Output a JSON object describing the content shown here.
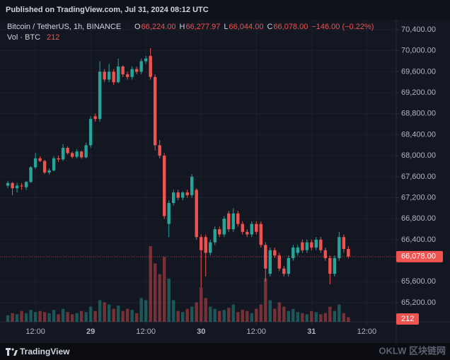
{
  "header": {
    "published": "Published on TradingView.com, Jul 31, 2024 08:12 UTC",
    "brand": "TradingView",
    "watermark": "OKLW 区块链网"
  },
  "chart_data": {
    "type": "candlestick",
    "symbol": "Bitcoin / TetherUS, 1h, BINANCE",
    "ohlc_legend": [
      {
        "label": "O",
        "value": "66,224.00"
      },
      {
        "label": "H",
        "value": "66,277.97"
      },
      {
        "label": "L",
        "value": "66,044.00"
      },
      {
        "label": "C",
        "value": "66,078.00"
      }
    ],
    "change": "−146.00 (−0.22%)",
    "volume_label": "Vol · BTC",
    "up_color": "#26a69a",
    "down_color": "#ef5350",
    "x": [
      0,
      1,
      2,
      3,
      4,
      5,
      6,
      7,
      8,
      9,
      10,
      11,
      12,
      13,
      14,
      15,
      16,
      17,
      18,
      19,
      20,
      21,
      22,
      23,
      24,
      25,
      26,
      27,
      28,
      29,
      30,
      31,
      32,
      33,
      34,
      35,
      36,
      37,
      38,
      39,
      40,
      41,
      42,
      43,
      44,
      45,
      46,
      47,
      48,
      49,
      50,
      51,
      52,
      53,
      54,
      55,
      56,
      57,
      58,
      59,
      60,
      61,
      62,
      63,
      64,
      65,
      66,
      67,
      68,
      69,
      70,
      71,
      72,
      73,
      74
    ],
    "open": [
      67430,
      67480,
      67380,
      67430,
      67400,
      67500,
      67780,
      67950,
      67900,
      67680,
      67720,
      67950,
      67930,
      68150,
      68050,
      67980,
      68080,
      67970,
      68200,
      68750,
      68700,
      69600,
      69450,
      69600,
      69400,
      69700,
      69550,
      69500,
      69650,
      69600,
      69800,
      69900,
      69500,
      68200,
      68000,
      66700,
      67100,
      67300,
      67200,
      67300,
      67250,
      67350,
      66450,
      66450,
      66150,
      66350,
      66600,
      66500,
      66900,
      66600,
      66900,
      66700,
      66550,
      66500,
      66700,
      66700,
      66300,
      65750,
      66200,
      66100,
      65850,
      65750,
      66050,
      66150,
      66350,
      66200,
      66350,
      66250,
      66400,
      66200,
      66050,
      65750,
      66050,
      66450,
      66224
    ],
    "high": [
      67520,
      67500,
      67480,
      67480,
      67520,
      67800,
      68050,
      67990,
      67920,
      67760,
      67990,
      68000,
      68220,
      68180,
      68080,
      68120,
      68100,
      68250,
      68750,
      68800,
      69800,
      69650,
      69750,
      69650,
      69850,
      69720,
      69600,
      69700,
      69700,
      69850,
      69900,
      70050,
      69550,
      68300,
      68050,
      67150,
      67350,
      67350,
      67320,
      67350,
      67650,
      67380,
      66500,
      66500,
      66400,
      66650,
      66650,
      66850,
      66950,
      67000,
      66950,
      66750,
      66600,
      66750,
      66750,
      66750,
      66350,
      66250,
      66250,
      66150,
      65900,
      66100,
      66300,
      66300,
      66400,
      66400,
      66400,
      66450,
      66450,
      66250,
      66100,
      66100,
      66550,
      66500,
      66277.97
    ],
    "low": [
      67380,
      67250,
      67300,
      67350,
      67350,
      67480,
      67750,
      67880,
      67650,
      67640,
      67700,
      67880,
      67900,
      68020,
      67950,
      67950,
      67940,
      67950,
      68150,
      68650,
      68650,
      69400,
      69400,
      69350,
      69380,
      69500,
      69450,
      69450,
      69550,
      69550,
      69750,
      69450,
      68100,
      67950,
      66800,
      66450,
      67050,
      67150,
      67150,
      67200,
      67200,
      66400,
      65500,
      65700,
      66100,
      66300,
      66450,
      66450,
      66550,
      66550,
      66650,
      66500,
      66450,
      66450,
      66500,
      66250,
      65600,
      65700,
      66050,
      65800,
      65700,
      65700,
      66000,
      66100,
      66150,
      66150,
      66200,
      66200,
      66150,
      66000,
      65550,
      65700,
      66000,
      66150,
      66044
    ],
    "close": [
      67480,
      67380,
      67430,
      67420,
      67500,
      67780,
      67950,
      67900,
      67680,
      67720,
      67950,
      67930,
      68150,
      68050,
      67980,
      68080,
      67970,
      68200,
      68700,
      68700,
      69600,
      69450,
      69600,
      69400,
      69700,
      69550,
      69500,
      69650,
      69600,
      69800,
      69850,
      69500,
      68200,
      68000,
      66850,
      67100,
      67300,
      67200,
      67300,
      67250,
      67600,
      66450,
      66200,
      66150,
      66350,
      66600,
      66500,
      66800,
      66600,
      66900,
      66700,
      66550,
      66500,
      66700,
      66550,
      66300,
      65850,
      66200,
      66100,
      65850,
      65750,
      66050,
      66250,
      66250,
      66200,
      66350,
      66250,
      66400,
      66200,
      66050,
      65750,
      66050,
      66450,
      66224,
      66078
    ],
    "volume": [
      300,
      400,
      350,
      500,
      400,
      550,
      450,
      500,
      450,
      400,
      550,
      350,
      600,
      450,
      350,
      400,
      500,
      450,
      700,
      500,
      1000,
      900,
      800,
      600,
      750,
      500,
      600,
      550,
      400,
      1100,
      1000,
      3500,
      2700,
      2200,
      3000,
      2000,
      1000,
      500,
      450,
      600,
      700,
      900,
      1600,
      1100,
      700,
      600,
      500,
      550,
      650,
      800,
      450,
      550,
      500,
      400,
      600,
      800,
      2000,
      1000,
      600,
      900,
      700,
      500,
      600,
      450,
      400,
      350,
      500,
      450,
      350,
      400,
      700,
      500,
      800,
      400,
      212
    ],
    "last_price": {
      "value": 66078,
      "label": "66,078.00"
    },
    "xlim": [
      -1.7,
      84.4
    ],
    "xticks": [
      {
        "value": 6,
        "label": "12:00"
      },
      {
        "value": 18,
        "label": "29"
      },
      {
        "value": 30,
        "label": "12:00"
      },
      {
        "value": 42,
        "label": "30"
      },
      {
        "value": 54,
        "label": "12:00"
      },
      {
        "value": 66,
        "label": "31"
      },
      {
        "value": 78,
        "label": "12:00"
      }
    ],
    "ylim": [
      64836,
      70589
    ],
    "yticks": [
      {
        "value": 70400,
        "label": "70,400.00"
      },
      {
        "value": 70000,
        "label": "70,000.00"
      },
      {
        "value": 69600,
        "label": "69,600.00"
      },
      {
        "value": 69200,
        "label": "69,200.00"
      },
      {
        "value": 68800,
        "label": "68,800.00"
      },
      {
        "value": 68400,
        "label": "68,400.00"
      },
      {
        "value": 68000,
        "label": "68,000.00"
      },
      {
        "value": 67600,
        "label": "67,600.00"
      },
      {
        "value": 67200,
        "label": "67,200.00"
      },
      {
        "value": 66800,
        "label": "66,800.00"
      },
      {
        "value": 66400,
        "label": "66,400.00"
      },
      {
        "value": 65600,
        "label": "65,600.00"
      },
      {
        "value": 65200,
        "label": "65,200.00"
      }
    ],
    "grid": true
  }
}
